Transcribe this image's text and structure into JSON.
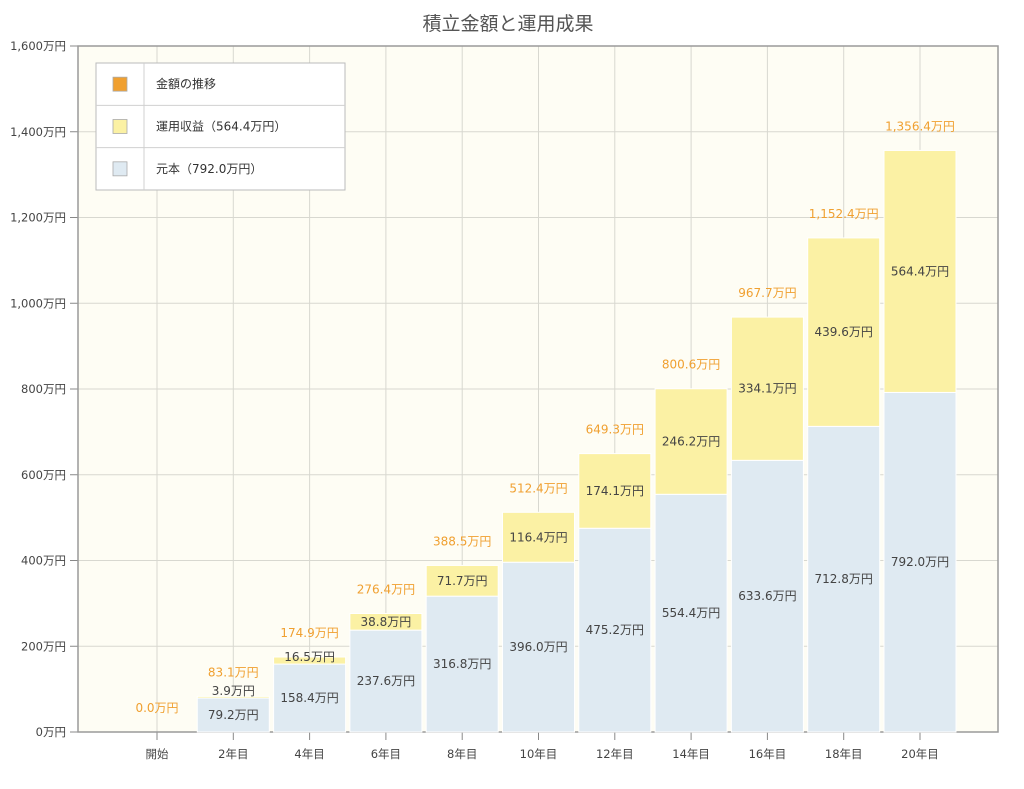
{
  "chart_data": {
    "type": "bar",
    "stacked": true,
    "title": "積立金額と運用成果",
    "categories": [
      "開始",
      "2年目",
      "4年目",
      "6年目",
      "8年目",
      "10年目",
      "12年目",
      "14年目",
      "16年目",
      "18年目",
      "20年目"
    ],
    "series": [
      {
        "name": "元本（792.0万円）",
        "color": "#dfeaf2",
        "values": [
          0,
          79.2,
          158.4,
          237.6,
          316.8,
          396.0,
          475.2,
          554.4,
          633.6,
          712.8,
          792.0
        ],
        "labels": [
          "",
          "79.2万円",
          "158.4万円",
          "237.6万円",
          "316.8万円",
          "396.0万円",
          "475.2万円",
          "554.4万円",
          "633.6万円",
          "712.8万円",
          "792.0万円"
        ]
      },
      {
        "name": "運用収益（564.4万円）",
        "color": "#fbf1a4",
        "values": [
          0,
          3.9,
          16.5,
          38.8,
          71.7,
          116.4,
          174.1,
          246.2,
          334.1,
          439.6,
          564.4
        ],
        "labels": [
          "",
          "3.9万円",
          "16.5万円",
          "38.8万円",
          "71.7万円",
          "116.4万円",
          "174.1万円",
          "246.2万円",
          "334.1万円",
          "439.6万円",
          "564.4万円"
        ]
      }
    ],
    "totals": {
      "name": "金額の推移",
      "color": "#f0a030",
      "values": [
        0.0,
        83.1,
        174.9,
        276.4,
        388.5,
        512.4,
        649.3,
        800.6,
        967.7,
        1152.4,
        1356.4
      ],
      "labels": [
        "0.0万円",
        "83.1万円",
        "174.9万円",
        "276.4万円",
        "388.5万円",
        "512.4万円",
        "649.3万円",
        "800.6万円",
        "967.7万円",
        "1,152.4万円",
        "1,356.4万円"
      ]
    },
    "ylim": [
      0,
      1600
    ],
    "yticks": [
      0,
      200,
      400,
      600,
      800,
      1000,
      1200,
      1400,
      1600
    ],
    "ytick_labels": [
      "0万円",
      "200万円",
      "400万円",
      "600万円",
      "800万円",
      "1,000万円",
      "1,200万円",
      "1,400万円",
      "1,600万円"
    ],
    "grid": true,
    "legend": {
      "position": "top-left",
      "entries": [
        {
          "label": "金額の推移",
          "color": "#f0a030"
        },
        {
          "label": "運用収益（564.4万円）",
          "color": "#fbf1a4"
        },
        {
          "label": "元本（792.0万円）",
          "color": "#dfeaf2"
        }
      ]
    }
  }
}
